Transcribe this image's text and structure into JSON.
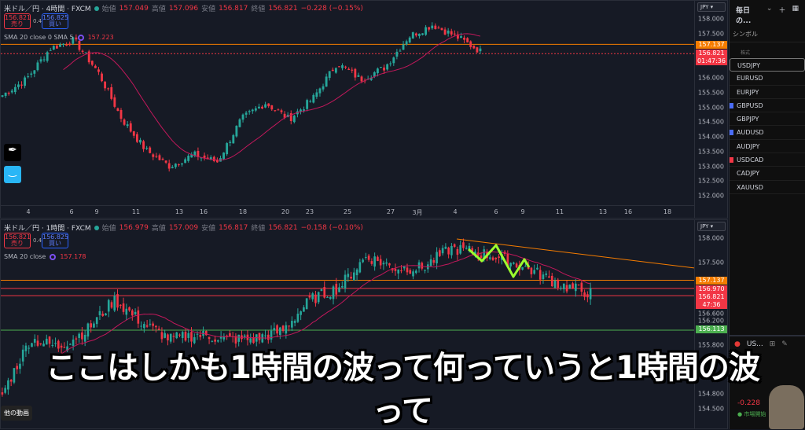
{
  "colors": {
    "up": "#26a69a",
    "down": "#f23645",
    "sma": "#c2185b",
    "orange": "#f57c00",
    "green": "#4caf50",
    "zig": "#9cff2e",
    "bg": "#161a25"
  },
  "chart1": {
    "title": "米ドル／円 · 4時間 · FXCM",
    "ohlc": [
      {
        "l": "始値",
        "v": "157.049"
      },
      {
        "l": "高値",
        "v": "157.096"
      },
      {
        "l": "安値",
        "v": "156.817"
      },
      {
        "l": "終値",
        "v": "156.821"
      }
    ],
    "change": "−0.228 (−0.15%)",
    "sell": {
      "price": "156.821",
      "label": "売り"
    },
    "spread": "0.4",
    "buy": {
      "price": "156.825",
      "label": "買い"
    },
    "sma_label": "SMA 20 close 0 SMA 5",
    "sma_value": "157.223",
    "currency": "JPY",
    "yticks": [
      "158.000",
      "157.500",
      "156.000",
      "155.500",
      "155.000",
      "154.500",
      "154.000",
      "153.500",
      "153.000",
      "152.500",
      "152.000"
    ],
    "ymax": 158.0,
    "ymin": 152.0,
    "lines": {
      "orange": 157.137,
      "red": 156.821
    },
    "orange_label": "157.137",
    "price_label": "156.821",
    "countdown": "01:47:36",
    "xticks": [
      "4",
      "6",
      "9",
      "11",
      "13",
      "16",
      "18",
      "20",
      "23",
      "25",
      "27",
      "3月",
      "4",
      "6",
      "9",
      "11",
      "13",
      "16",
      "18"
    ],
    "price_path": [
      [
        155.41,
        155.95,
        157.0,
        157.28,
        156.2,
        154.6,
        153.55,
        153.0,
        153.4,
        153.15,
        154.6,
        155.15,
        154.6,
        155.3,
        156.5,
        155.95,
        156.35,
        157.4,
        157.8,
        157.4,
        156.9
      ]
    ]
  },
  "chart2": {
    "title": "米ドル／円 · 1時間 · FXCM",
    "ohlc": [
      {
        "l": "始値",
        "v": "156.979"
      },
      {
        "l": "高値",
        "v": "157.009"
      },
      {
        "l": "安値",
        "v": "156.817"
      },
      {
        "l": "終値",
        "v": "156.821"
      }
    ],
    "change": "−0.158 (−0.10%)",
    "sell": {
      "price": "156.821",
      "label": "売り"
    },
    "spread": "0.4",
    "buy": {
      "price": "156.825",
      "label": "買い"
    },
    "sma_label": "SMA 20 close",
    "sma_value": "157.178",
    "currency": "JPY",
    "yticks": [
      "158.000",
      "157.500",
      "156.600",
      "156.200",
      "155.800",
      "154.800",
      "154.500"
    ],
    "lines": {
      "orange": 157.137,
      "red1": 156.97,
      "red2": 156.821,
      "green": 156.113
    },
    "labels": {
      "orange": "157.137",
      "red1": "156.970",
      "red2": "156.821",
      "countdown": "47:36",
      "green": "156.113"
    },
    "price_path": [
      154.8,
      155.93,
      155.77,
      156.1,
      156.74,
      156.26,
      155.93,
      156.02,
      155.93,
      155.93,
      156.1,
      156.74,
      156.98,
      157.63,
      157.39,
      157.39,
      157.79,
      157.71,
      157.55,
      157.31,
      157.03,
      156.87
    ]
  },
  "watchlist": {
    "title": "毎日の...",
    "symbol_col": "シンボル",
    "group": "株式",
    "items": [
      {
        "s": "USDJPY",
        "flag": ""
      },
      {
        "s": "EURUSD",
        "flag": ""
      },
      {
        "s": "EURJPY",
        "flag": ""
      },
      {
        "s": "GBPUSD",
        "flag": "#4a6cf7"
      },
      {
        "s": "GBPJPY",
        "flag": ""
      },
      {
        "s": "AUDUSD",
        "flag": "#4a6cf7"
      },
      {
        "s": "AUDJPY",
        "flag": ""
      },
      {
        "s": "USDCAD",
        "flag": "#f23645"
      },
      {
        "s": "CADJPY",
        "flag": ""
      },
      {
        "s": "XAUUSD",
        "flag": ""
      }
    ]
  },
  "details": {
    "symbol": "US...",
    "change": "-0.228",
    "status": "市場開始"
  },
  "other_videos": "他の動画",
  "subtitle": {
    "line1": "ここはしかも1時間の波って何っていうと1時間の波",
    "line2": "って"
  }
}
